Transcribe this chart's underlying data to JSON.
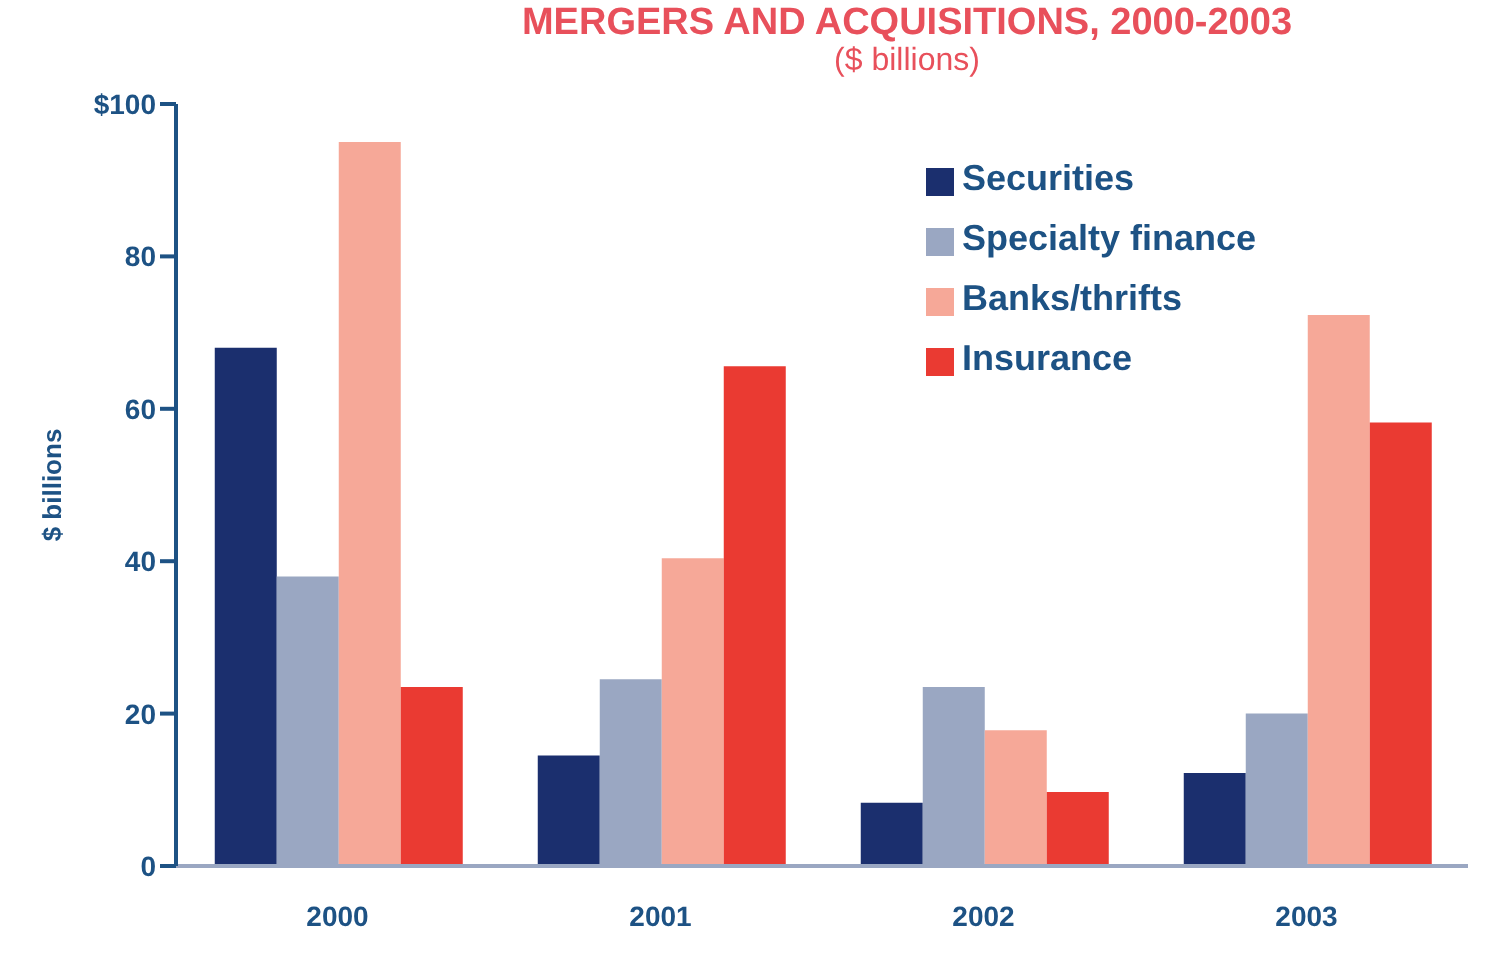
{
  "chart_data": {
    "type": "bar",
    "title": "MERGERS AND ACQUISITIONS, 2000-2003",
    "subtitle": "($ billions)",
    "ylabel": "$ billions",
    "categories": [
      "2000",
      "2001",
      "2002",
      "2003"
    ],
    "series": [
      {
        "name": "Securities",
        "color": "#1b2f6e",
        "values": [
          68,
          14.5,
          8.3,
          12.2
        ]
      },
      {
        "name": "Specialty finance",
        "color": "#9aa7c2",
        "values": [
          38,
          24.5,
          23.5,
          20
        ]
      },
      {
        "name": "Banks/thrifts",
        "color": "#f6a898",
        "values": [
          95,
          40.4,
          17.8,
          72.3
        ]
      },
      {
        "name": "Insurance",
        "color": "#ea3a32",
        "values": [
          23.5,
          65.6,
          9.7,
          58.2
        ]
      }
    ],
    "ylim": [
      0,
      100
    ],
    "yticks": [
      0,
      20,
      40,
      60,
      80,
      {
        "value": 100,
        "label": "$100"
      }
    ],
    "grid": false,
    "legend": "top right"
  }
}
